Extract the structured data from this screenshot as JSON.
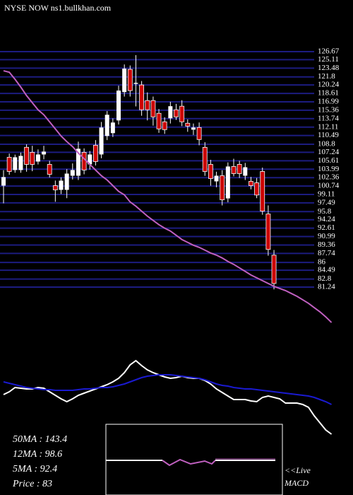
{
  "chart_data": {
    "type": "candlestick",
    "title": "NYSE NOW ns1.bullkhan.com",
    "ylim": [
      81.24,
      126.67
    ],
    "yticks": [
      126.67,
      125.11,
      123.48,
      121.8,
      120.24,
      118.61,
      116.99,
      115.36,
      113.74,
      112.11,
      110.49,
      108.8,
      107.24,
      105.61,
      103.99,
      102.36,
      100.74,
      99.11,
      97.49,
      95.8,
      94.24,
      92.61,
      90.99,
      89.36,
      87.74,
      86,
      84.49,
      82.8,
      81.24
    ],
    "grid": true,
    "up_color": "#ffffff",
    "down_color": "#cc0000",
    "grid_color": "#1c1c80",
    "ohlc": [
      [
        100.82,
        103.8,
        97.4,
        102.46
      ],
      [
        106.29,
        107.0,
        102.9,
        103.55
      ],
      [
        103.82,
        106.8,
        103.3,
        106.29
      ],
      [
        103.82,
        107.2,
        103.3,
        106.56
      ],
      [
        108.21,
        108.8,
        103.5,
        104.92
      ],
      [
        107.24,
        108.5,
        103.6,
        104.92
      ],
      [
        105.46,
        107.8,
        104.9,
        106.83
      ],
      [
        106.83,
        108.5,
        105.9,
        107.38
      ],
      [
        104.92,
        105.6,
        102.4,
        103.0
      ],
      [
        100.82,
        101.8,
        97.7,
        100.0
      ],
      [
        100.0,
        102.4,
        99.2,
        101.78
      ],
      [
        100.0,
        104.0,
        98.4,
        103.14
      ],
      [
        102.73,
        105.1,
        102.0,
        103.82
      ],
      [
        102.73,
        109.3,
        101.9,
        107.93
      ],
      [
        107.24,
        108.0,
        103.0,
        103.82
      ],
      [
        104.92,
        107.5,
        103.9,
        106.83
      ],
      [
        108.61,
        109.6,
        104.7,
        105.46
      ],
      [
        106.83,
        113.1,
        106.1,
        112.03
      ],
      [
        110.39,
        115.2,
        109.6,
        114.49
      ],
      [
        110.94,
        113.8,
        110.2,
        112.99
      ],
      [
        113.4,
        120.1,
        112.6,
        119.15
      ],
      [
        118.87,
        124.2,
        118.0,
        123.39
      ],
      [
        123.25,
        124.0,
        118.0,
        119.15
      ],
      [
        120.45,
        126.0,
        116.1,
        120.65
      ],
      [
        120.24,
        121.0,
        114.3,
        115.45
      ],
      [
        117.23,
        118.8,
        113.4,
        115.45
      ],
      [
        117.23,
        118.0,
        112.4,
        114.08
      ],
      [
        114.77,
        115.6,
        111.0,
        111.76
      ],
      [
        113.13,
        114.0,
        110.8,
        111.62
      ],
      [
        113.81,
        117.0,
        112.8,
        116.14
      ],
      [
        115.45,
        116.6,
        113.5,
        114.08
      ],
      [
        116.14,
        117.3,
        112.3,
        113.13
      ],
      [
        112.85,
        113.6,
        111.2,
        112.3
      ],
      [
        111.62,
        112.8,
        110.6,
        112.03
      ],
      [
        112.03,
        113.0,
        108.6,
        109.71
      ],
      [
        108.2,
        109.2,
        102.7,
        103.55
      ],
      [
        104.92,
        105.8,
        100.8,
        102.18
      ],
      [
        101.64,
        103.5,
        100.5,
        102.73
      ],
      [
        102.73,
        103.8,
        97.0,
        98.08
      ],
      [
        98.35,
        105.3,
        97.6,
        104.51
      ],
      [
        104.51,
        106.0,
        102.6,
        103.14
      ],
      [
        104.92,
        105.6,
        102.3,
        103.14
      ],
      [
        102.73,
        105.2,
        101.9,
        104.37
      ],
      [
        101.64,
        102.5,
        100.1,
        100.82
      ],
      [
        101.36,
        102.3,
        98.4,
        99.0
      ],
      [
        103.55,
        104.3,
        95.2,
        95.89
      ],
      [
        95.34,
        97.0,
        87.3,
        88.51
      ],
      [
        87.4,
        88.4,
        80.8,
        81.94
      ]
    ],
    "ma": {
      "color": "#c060c0",
      "values": [
        122.98,
        122.7,
        121.33,
        119.83,
        118.19,
        116.82,
        115.45,
        114.49,
        113.13,
        111.76,
        110.39,
        109.3,
        108.34,
        107.11,
        106.01,
        104.92,
        103.82,
        102.73,
        101.91,
        100.82,
        99.72,
        99.04,
        97.67,
        96.85,
        95.89,
        94.93,
        94.11,
        93.29,
        92.61,
        92.06,
        91.24,
        90.42,
        89.87,
        89.32,
        88.91,
        88.37,
        87.82,
        87.41,
        86.86,
        86.18,
        85.63,
        84.95,
        84.27,
        83.58,
        83.03,
        82.48,
        81.94,
        81.39,
        80.98,
        80.57,
        80.02,
        79.47,
        78.79,
        78.11,
        77.28,
        76.46,
        75.5,
        74.41
      ]
    },
    "oscillator": {
      "ylim": [
        0,
        115
      ],
      "series": [
        {
          "color": "#ffffff",
          "values": [
            57,
            61,
            67,
            66,
            65,
            65,
            67,
            66,
            61,
            56,
            51,
            47,
            51,
            56,
            59,
            62,
            65,
            68,
            71,
            75,
            80,
            88,
            99,
            105,
            98,
            92,
            88,
            85,
            82,
            80,
            81,
            83,
            81,
            80,
            80,
            77,
            72,
            65,
            60,
            55,
            50,
            50,
            50,
            48,
            47,
            53,
            55,
            53,
            51,
            45,
            45,
            45,
            43,
            39,
            27,
            17,
            7,
            1
          ]
        },
        {
          "color": "#1a1ad0",
          "values": [
            75,
            73,
            71,
            69,
            67,
            66,
            65,
            64,
            64,
            63,
            63,
            63,
            63,
            64,
            65,
            65,
            66,
            67,
            67,
            68,
            70,
            72,
            75,
            78,
            81,
            83,
            84,
            85,
            85,
            85,
            84,
            83,
            82,
            81,
            80,
            78,
            75,
            72,
            70,
            69,
            67,
            66,
            65,
            65,
            64,
            63,
            62,
            61,
            60,
            59,
            58,
            57,
            56,
            55,
            53,
            50,
            47,
            43
          ]
        }
      ]
    },
    "stats": [
      "50MA : 143.4",
      "12MA : 98.6",
      "5MA : 92.4",
      "Price   : 83"
    ],
    "macd_label": [
      "<<Live",
      "MACD"
    ]
  }
}
